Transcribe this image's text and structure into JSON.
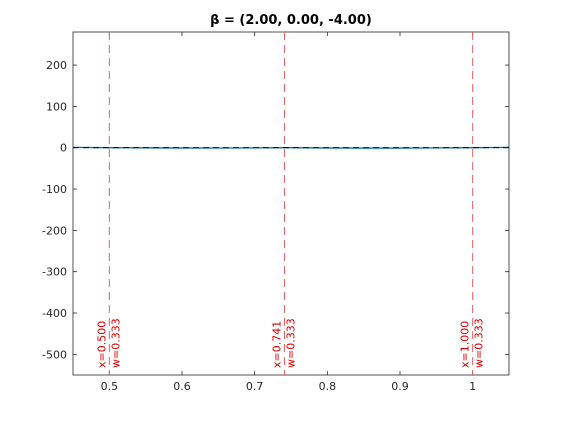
{
  "chart_data": {
    "type": "line",
    "title": "β = (2.00, 0.00, -4.00)",
    "xlabel": "",
    "ylabel": "",
    "xlim": [
      0.45,
      1.05
    ],
    "ylim": [
      -550,
      280
    ],
    "x_ticks": [
      0.5,
      0.6,
      0.7,
      0.8,
      0.9,
      1.0
    ],
    "x_tick_labels": [
      "0.5",
      "0.6",
      "0.7",
      "0.8",
      "0.9",
      "1"
    ],
    "y_ticks": [
      200,
      100,
      0,
      -100,
      -200,
      -300,
      -400,
      -500
    ],
    "y_tick_labels": [
      "200",
      "100",
      "0",
      "-100",
      "-200",
      "-300",
      "-400",
      "-500"
    ],
    "grid": false,
    "series": [
      {
        "color": "#0072bd",
        "style": "solid",
        "x": [
          0.45,
          0.5,
          0.55,
          0.6,
          0.65,
          0.7,
          0.741,
          0.75,
          0.8,
          0.85,
          0.9,
          0.95,
          1.0,
          1.05
        ],
        "values": [
          0.8,
          0,
          -0.3,
          -0.6,
          -0.7,
          -0.4,
          0,
          0.1,
          -0.5,
          -0.9,
          -0.8,
          -0.4,
          0,
          0.9
        ]
      },
      {
        "color": "#000000",
        "style": "dashed",
        "x": [
          0.45,
          1.05
        ],
        "values": [
          0,
          0
        ]
      }
    ],
    "vlines": [
      {
        "x": 0.5,
        "x_label": "x=0.500",
        "w_label": "w=0.333",
        "color": "#e06060"
      },
      {
        "x": 0.741,
        "x_label": "x=0.741",
        "w_label": "w=0.333",
        "color": "#e06060"
      },
      {
        "x": 1.0,
        "x_label": "x=1.000",
        "w_label": "w=0.333",
        "color": "#e06060"
      }
    ],
    "colors": {
      "axis": "#262626",
      "annotation": "#d40000"
    }
  }
}
